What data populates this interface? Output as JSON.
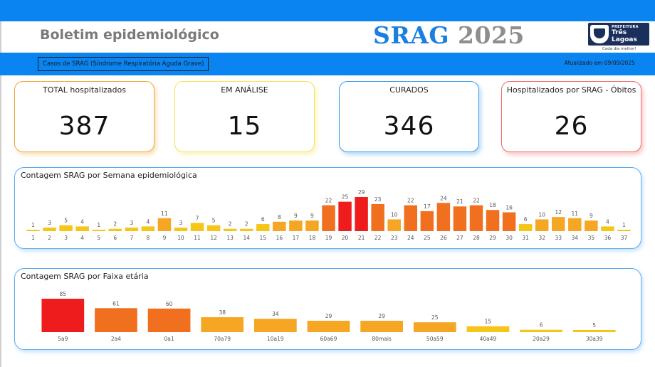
{
  "header": {
    "title": "Boletim epidemiológico",
    "brand_srag": "SRAG",
    "brand_year": "2025",
    "logo": {
      "small_text": "PREFEITURA",
      "name": "Três Lagoas",
      "tagline": "Cada dia melhor!"
    }
  },
  "subheader": {
    "label": "Casos de SRAG (Síndrome Respiratória Aguda Grave)",
    "updated": "Atualizado em 09/09/2025"
  },
  "cards": [
    {
      "label": "TOTAL hospitalizados",
      "value": "387"
    },
    {
      "label": "EM ANÁLISE",
      "value": "15"
    },
    {
      "label": "CURADOS",
      "value": "346"
    },
    {
      "label": "Hospitalizados por SRAG - Óbitos",
      "value": "26"
    }
  ],
  "colors": {
    "accent": "#0a84f0",
    "low": "#f5c518",
    "mid": "#f5a623",
    "high": "#f07020",
    "max": "#ee1c1c"
  },
  "chart_data": [
    {
      "type": "bar",
      "title": "Contagem SRAG por Semana epidemiológica",
      "categories": [
        "1",
        "2",
        "3",
        "4",
        "5",
        "6",
        "7",
        "8",
        "9",
        "10",
        "11",
        "12",
        "13",
        "14",
        "15",
        "16",
        "17",
        "18",
        "19",
        "20",
        "21",
        "22",
        "23",
        "24",
        "25",
        "26",
        "27",
        "28",
        "29",
        "30",
        "31",
        "32",
        "33",
        "34",
        "35",
        "36",
        "37"
      ],
      "values": [
        1,
        3,
        5,
        4,
        1,
        2,
        3,
        4,
        11,
        3,
        7,
        5,
        2,
        2,
        6,
        8,
        9,
        9,
        22,
        25,
        29,
        23,
        10,
        22,
        17,
        24,
        21,
        22,
        18,
        16,
        6,
        10,
        12,
        11,
        9,
        4,
        1
      ],
      "legend": false,
      "grid": false
    },
    {
      "type": "bar",
      "title": "Contagem SRAG por Faixa etária",
      "categories": [
        "5a9",
        "2a4",
        "0a1",
        "70a79",
        "10a19",
        "60a69",
        "80mais",
        "50a59",
        "40a49",
        "20a29",
        "30a39"
      ],
      "values": [
        85,
        61,
        60,
        38,
        34,
        29,
        29,
        25,
        15,
        6,
        5
      ],
      "legend": false,
      "grid": false
    }
  ]
}
